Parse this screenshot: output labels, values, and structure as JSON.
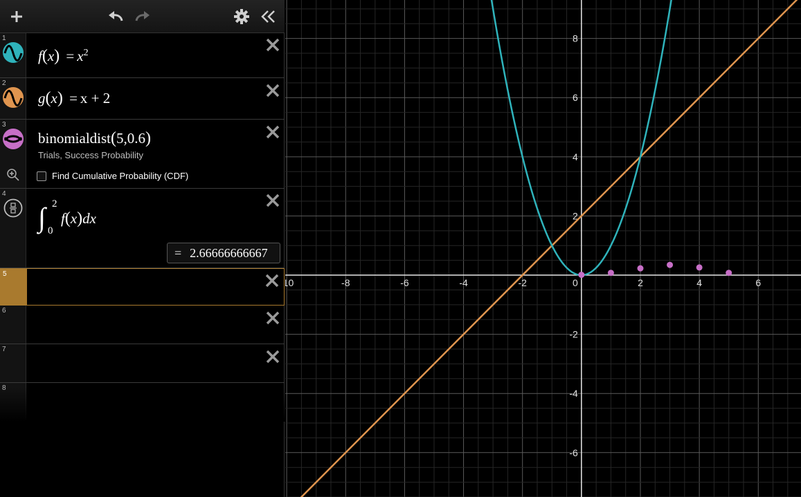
{
  "toolbar": {
    "add_icon": "plus-icon",
    "undo_icon": "undo-icon",
    "redo_icon": "redo-icon",
    "settings_icon": "gear-icon",
    "collapse_icon": "double-chevron-left-icon"
  },
  "expressions": [
    {
      "index": "1",
      "color": "#2fb3bb",
      "fn": "f",
      "var": "x",
      "rhs_var": "x",
      "exp": "2"
    },
    {
      "index": "2",
      "color": "#e0954f",
      "fn": "g",
      "var": "x",
      "rhs": "x + 2"
    },
    {
      "index": "3",
      "color": "#c76fc7",
      "text": "binomialdist",
      "args": "5,0.6",
      "param_1": "Trials,",
      "param_2": "Success Probability",
      "cdf_label": "Find Cumulative Probability (CDF)",
      "zoom_icon": "zoom-icon"
    },
    {
      "index": "4",
      "icon": "fraction-icon",
      "upper": "2",
      "lower": "0",
      "integrand_fn": "f",
      "integrand_var": "x",
      "dx": "dx",
      "result_eq": "=",
      "result": "2.66666666667"
    },
    {
      "index": "5",
      "active_color": "#a97a2e"
    },
    {
      "index": "6"
    },
    {
      "index": "7"
    },
    {
      "index": "8"
    }
  ],
  "graph": {
    "x_ticks": [
      "-10",
      "-8",
      "-6",
      "-4",
      "-2",
      "0",
      "2",
      "4",
      "6"
    ],
    "y_ticks": [
      "8",
      "6",
      "4",
      "2",
      "-2",
      "-4",
      "-6"
    ],
    "x_tick_values": [
      -10,
      -8,
      -6,
      -4,
      -2,
      0,
      2,
      4,
      6
    ],
    "y_tick_values": [
      8,
      6,
      4,
      2,
      -2,
      -4,
      -6
    ],
    "x_range": [
      -10.05,
      7.45
    ],
    "y_range": [
      -7.5,
      9.3
    ],
    "parabola_color": "#2fb3bb",
    "line_color": "#e0954f",
    "points_color": "#c76fc7",
    "binomial_points": [
      [
        0,
        0.01024
      ],
      [
        1,
        0.0768
      ],
      [
        2,
        0.2304
      ],
      [
        3,
        0.3456
      ],
      [
        4,
        0.2592
      ],
      [
        5,
        0.07776
      ]
    ]
  }
}
